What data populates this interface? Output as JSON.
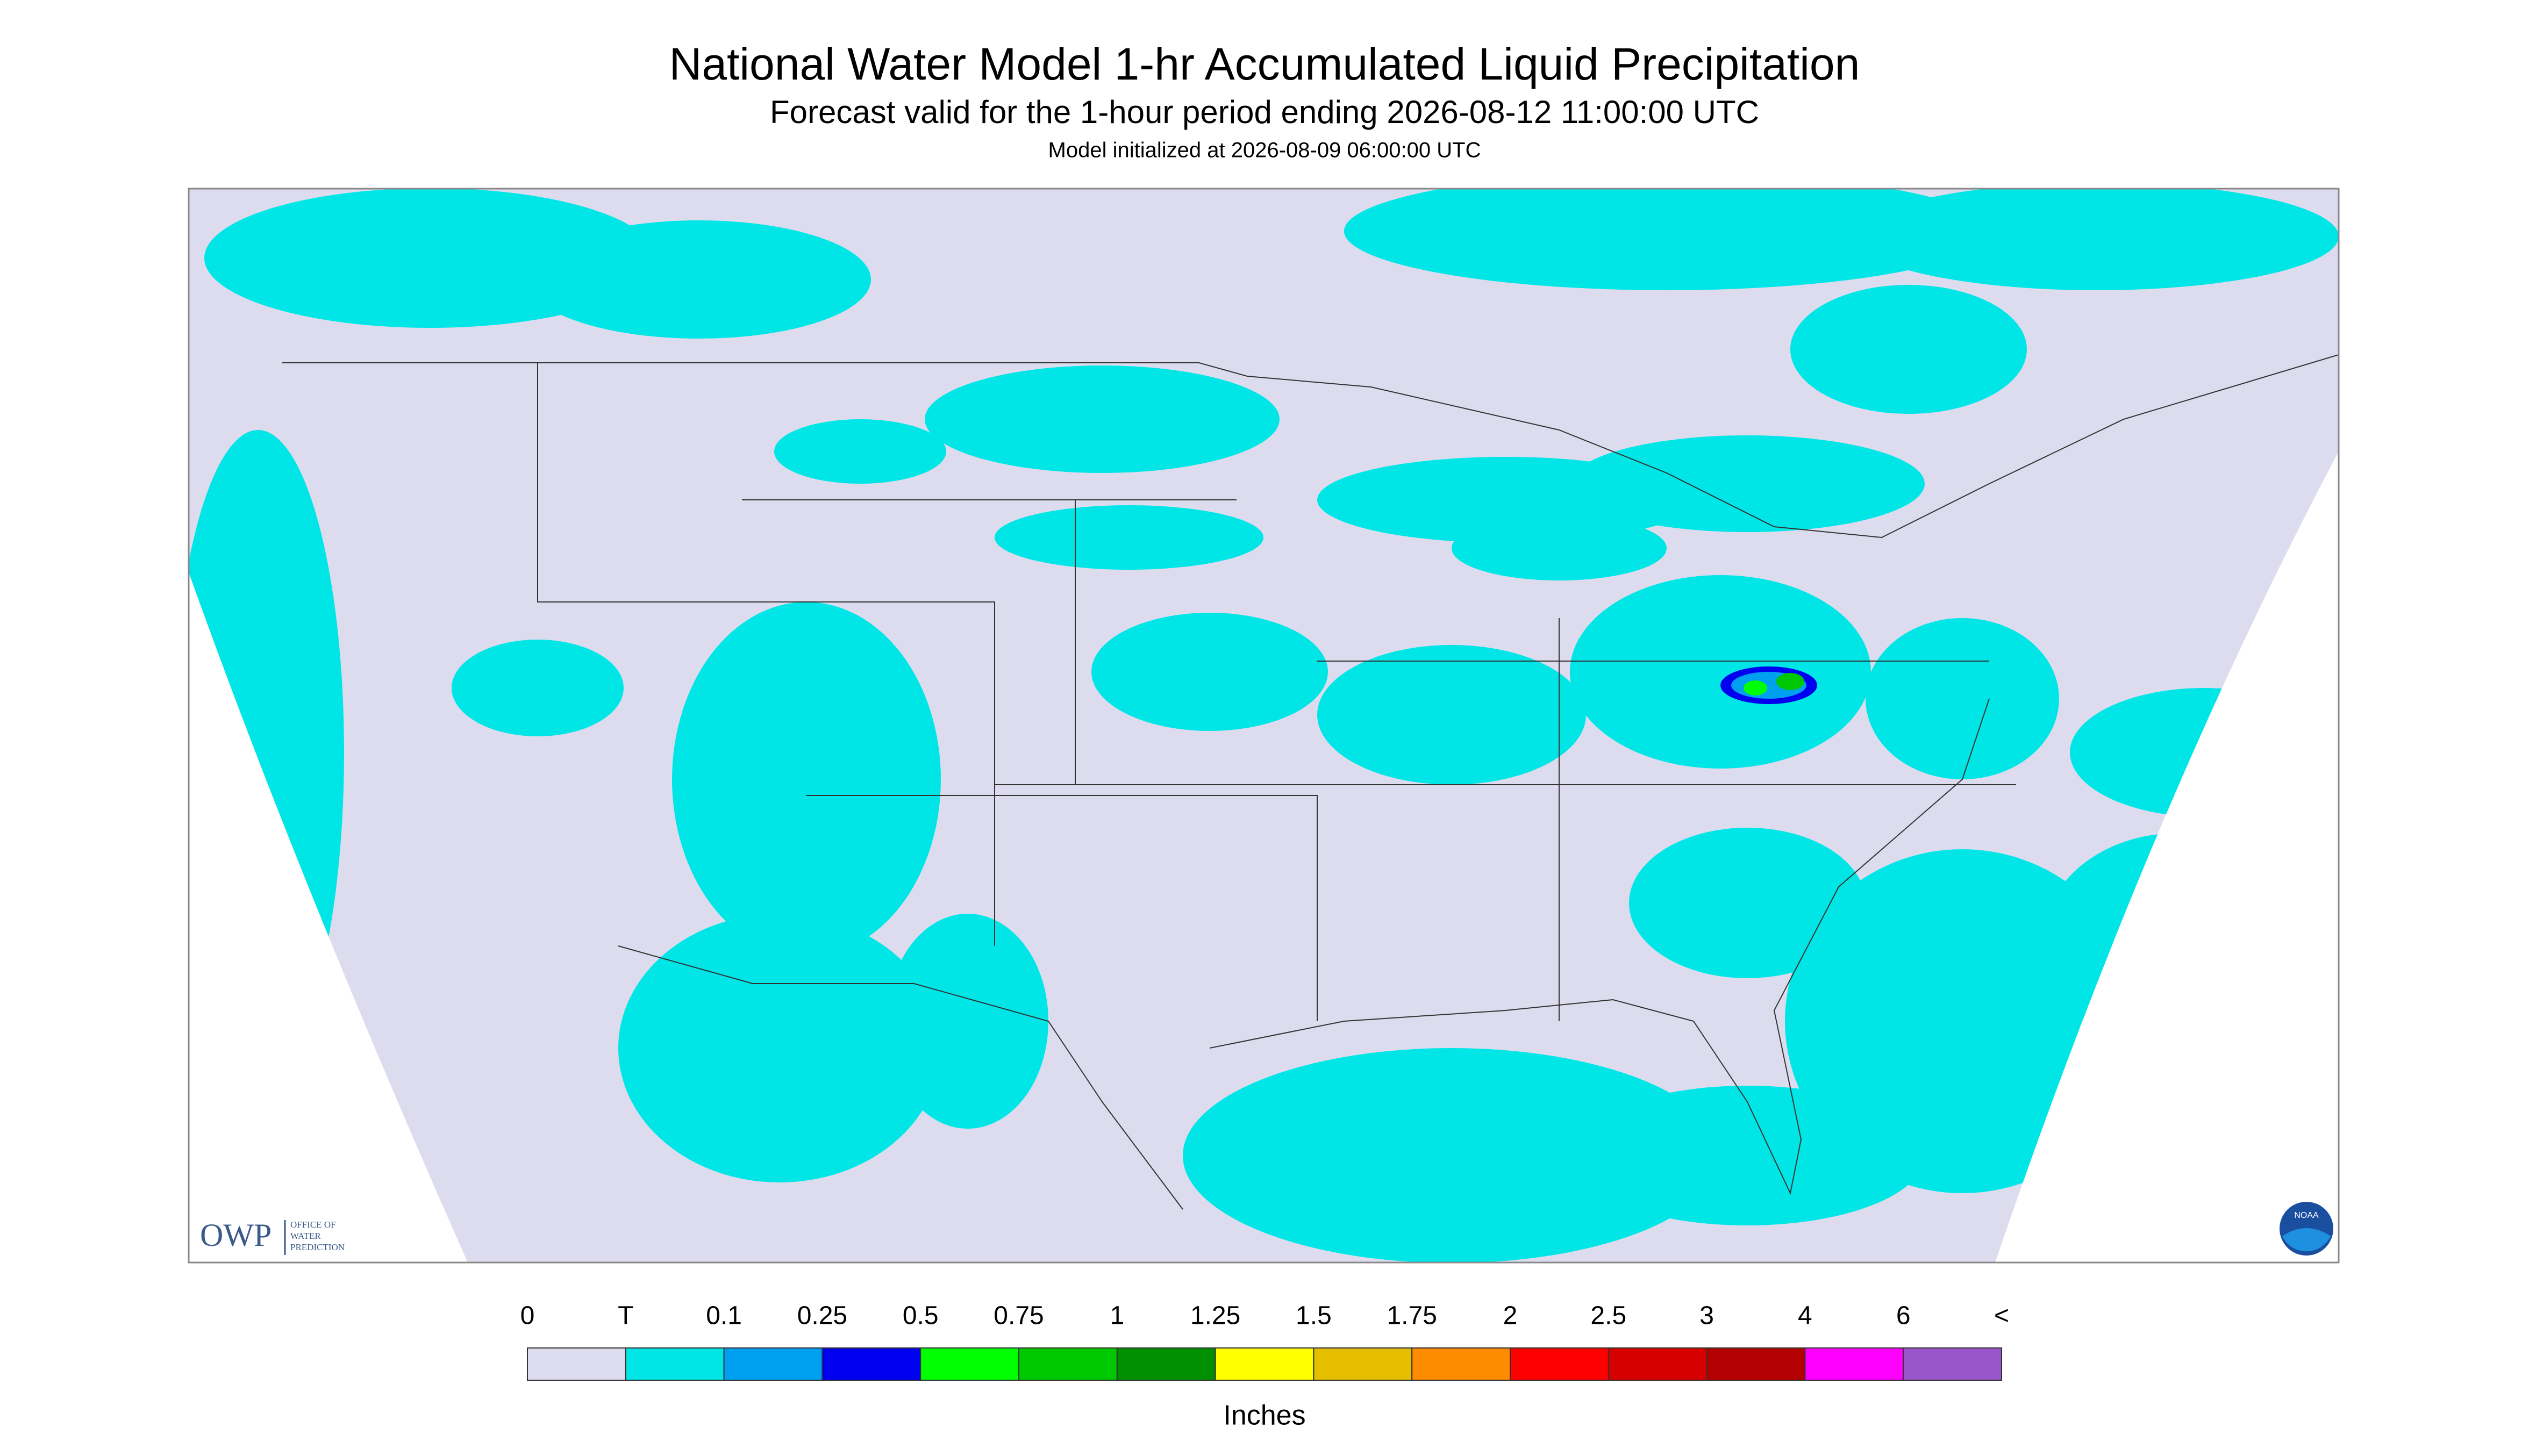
{
  "header": {
    "title": "National Water Model 1-hr Accumulated Liquid Precipitation",
    "subtitle": "Forecast valid for the 1-hour period ending 2026-08-12 11:00:00 UTC",
    "initialized": "Model initialized at 2026-08-09 06:00:00 UTC"
  },
  "legend": {
    "labels": [
      "0",
      "T",
      "0.1",
      "0.25",
      "0.5",
      "0.75",
      "1",
      "1.25",
      "1.5",
      "1.75",
      "2",
      "2.5",
      "3",
      "4",
      "6",
      "<"
    ],
    "colors": [
      "#dcdcee",
      "#00e6e6",
      "#00a0f0",
      "#0000f0",
      "#00ff00",
      "#00c800",
      "#008f00",
      "#ffff00",
      "#e6be00",
      "#ff8c00",
      "#ff0000",
      "#d70000",
      "#b40000",
      "#ff00ff",
      "#9955c9"
    ],
    "unit": "Inches"
  },
  "logos": {
    "owp": "OWP",
    "owp_name": [
      "OFFICE OF",
      "WATER",
      "PREDICTION"
    ],
    "noaa": "NOAA"
  }
}
